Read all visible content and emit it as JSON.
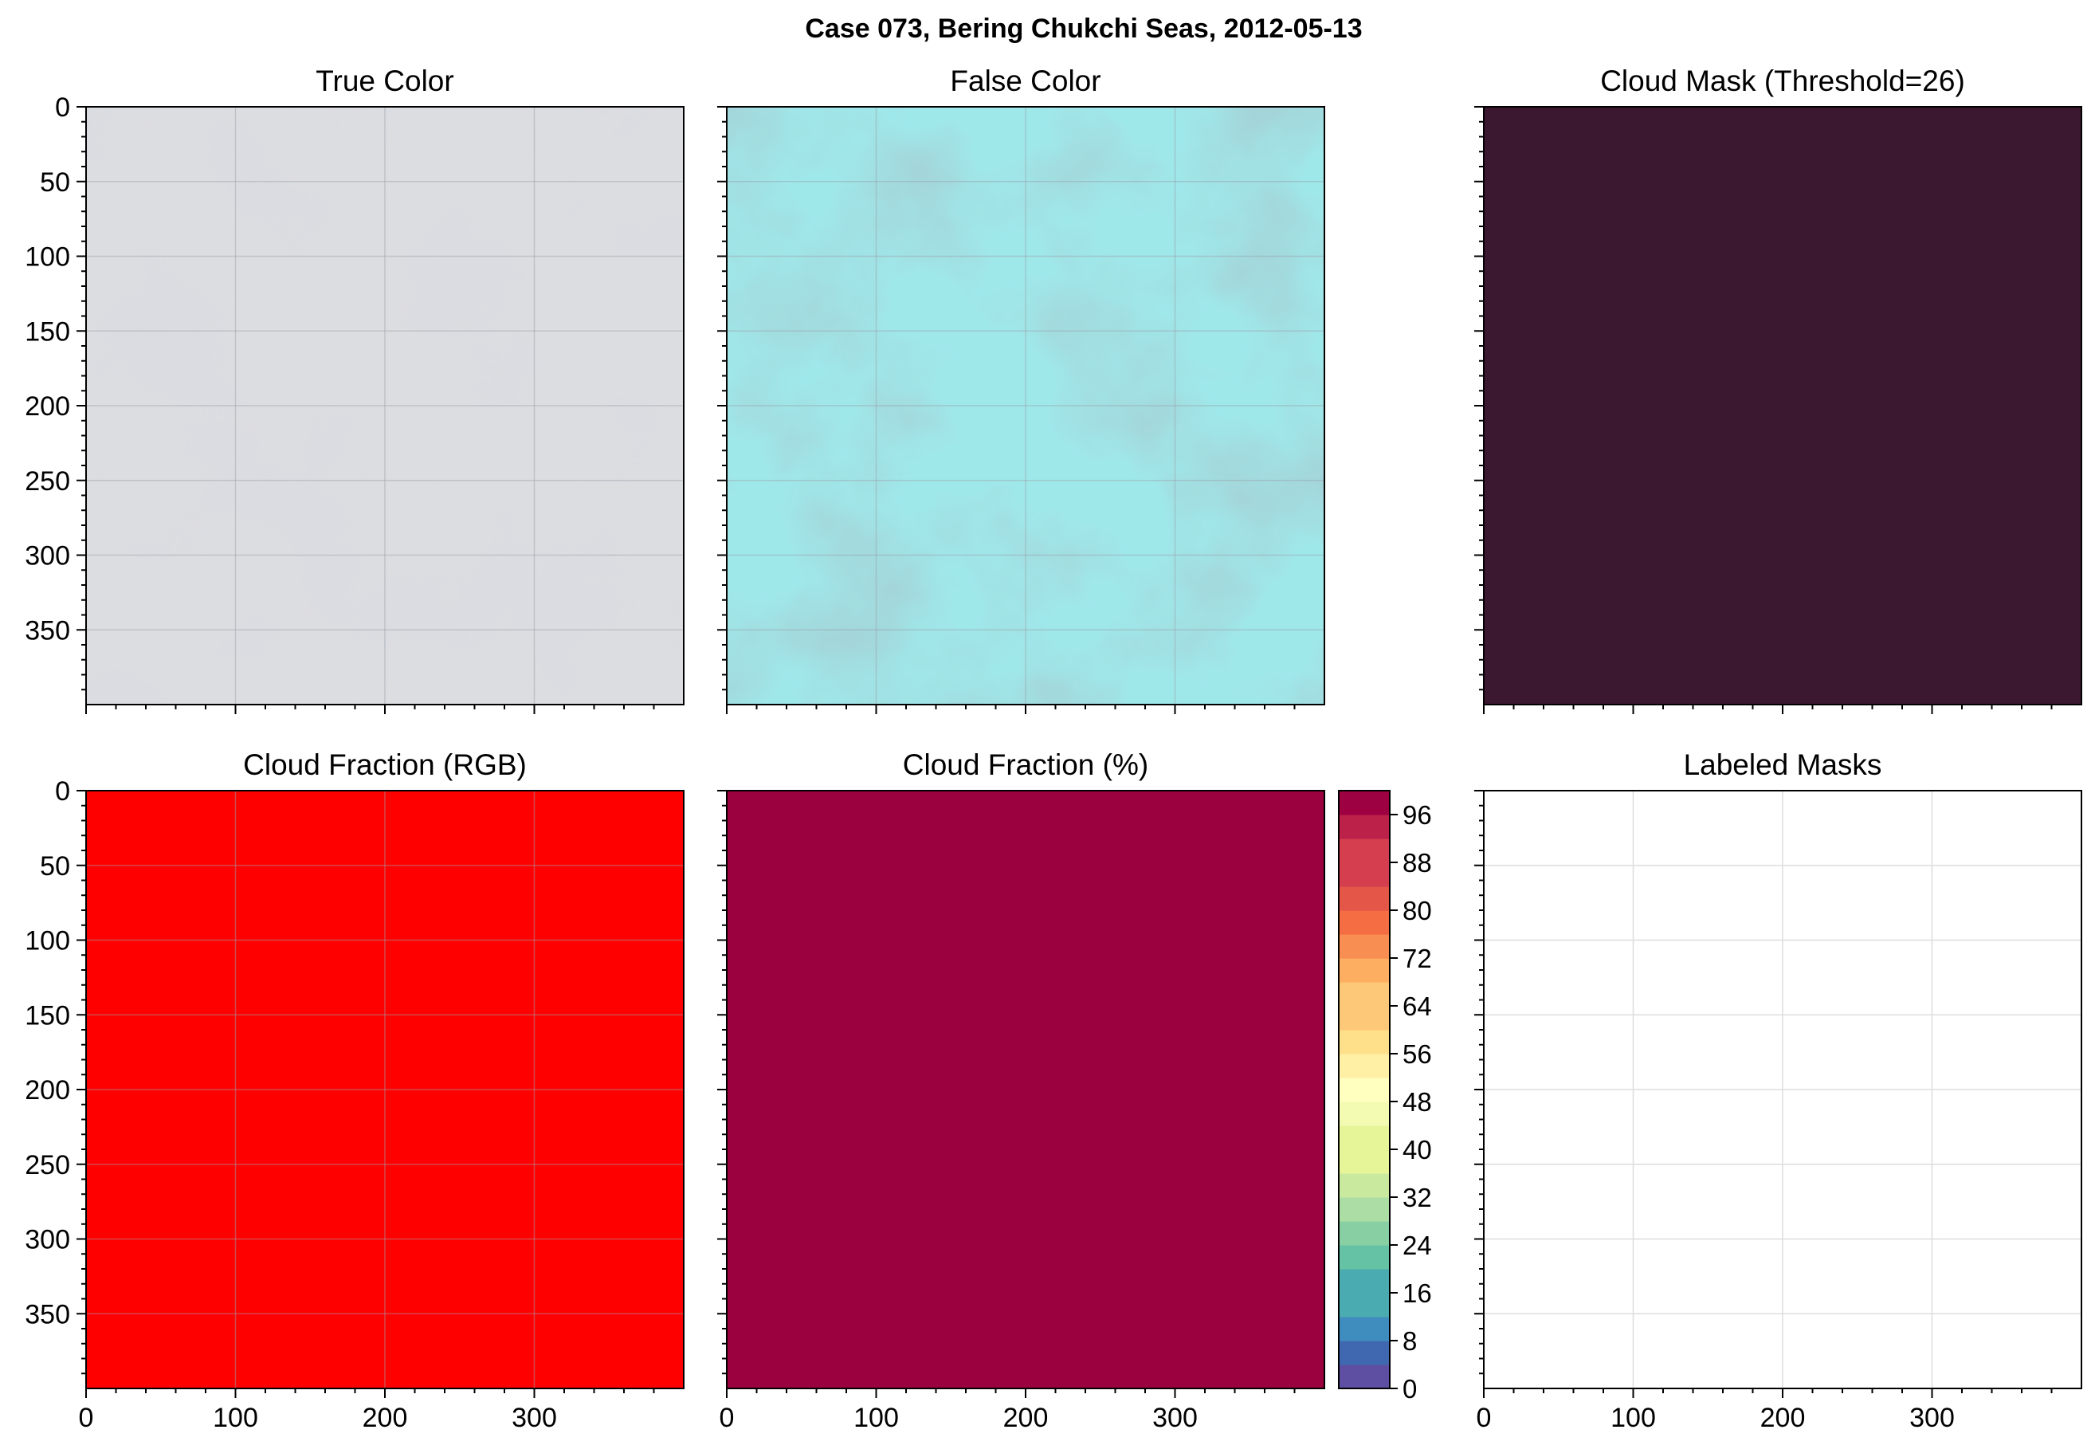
{
  "figure": {
    "title": "Case 073, Bering Chukchi Seas, 2012-05-13"
  },
  "colors": {
    "cloud_mask_fill": "#3c1830",
    "cloud_fraction_rgb_fill": "#ff0000",
    "cloud_fraction_pct_fill": "#9b003f",
    "true_color_base": "#dcdde1",
    "false_color_base": "#9fe8ea",
    "grid": "#9aa0a8"
  },
  "chart_data": [
    {
      "type": "heatmap",
      "title": "True Color",
      "x": [
        0,
        400
      ],
      "y": [
        0,
        400
      ],
      "xlim": [
        0,
        400
      ],
      "ylim": [
        400,
        0
      ],
      "xticks": [],
      "yticks": [
        0,
        50,
        100,
        150,
        200,
        250,
        300,
        350
      ],
      "grid": true,
      "content": "image"
    },
    {
      "type": "heatmap",
      "title": "False Color",
      "xlim": [
        0,
        400
      ],
      "ylim": [
        400,
        0
      ],
      "xticks": [],
      "yticks": [],
      "grid": true,
      "content": "image"
    },
    {
      "type": "heatmap",
      "title": "Cloud Mask (Threshold=26)",
      "xlim": [
        0,
        400
      ],
      "ylim": [
        400,
        0
      ],
      "xticks": [],
      "yticks": [],
      "grid": false,
      "value": "uniform"
    },
    {
      "type": "heatmap",
      "title": "Cloud Fraction (RGB)",
      "xlim": [
        0,
        400
      ],
      "ylim": [
        400,
        0
      ],
      "xticks": [
        0,
        100,
        200,
        300
      ],
      "yticks": [
        0,
        50,
        100,
        150,
        200,
        250,
        300,
        350
      ],
      "grid": true,
      "value": "uniform"
    },
    {
      "type": "heatmap",
      "title": "Cloud Fraction (%)",
      "xlim": [
        0,
        400
      ],
      "ylim": [
        400,
        0
      ],
      "xticks": [
        0,
        100,
        200,
        300
      ],
      "yticks": [],
      "grid": false,
      "value": 100,
      "colorbar": {
        "min": 0,
        "max": 100,
        "step": 4,
        "tick_labels": [
          "0",
          "8",
          "16",
          "24",
          "32",
          "40",
          "48",
          "56",
          "64",
          "72",
          "80",
          "88",
          "96"
        ],
        "colors": [
          "#5e4fa2",
          "#4068b1",
          "#3f8dbf",
          "#4aabb0",
          "#66c2a5",
          "#88d0a4",
          "#abdda4",
          "#c8e99e",
          "#e6f598",
          "#f3fab1",
          "#ffffbf",
          "#fff0a6",
          "#fee08b",
          "#fdc877",
          "#fdae61",
          "#f98e52",
          "#f46d43",
          "#e45648",
          "#d53e4f",
          "#bc2249",
          "#9e0142"
        ]
      }
    },
    {
      "type": "heatmap",
      "title": "Labeled Masks",
      "xlim": [
        0,
        400
      ],
      "ylim": [
        400,
        0
      ],
      "xticks": [
        0,
        100,
        200,
        300
      ],
      "yticks": [],
      "grid": true,
      "value": "empty"
    }
  ]
}
